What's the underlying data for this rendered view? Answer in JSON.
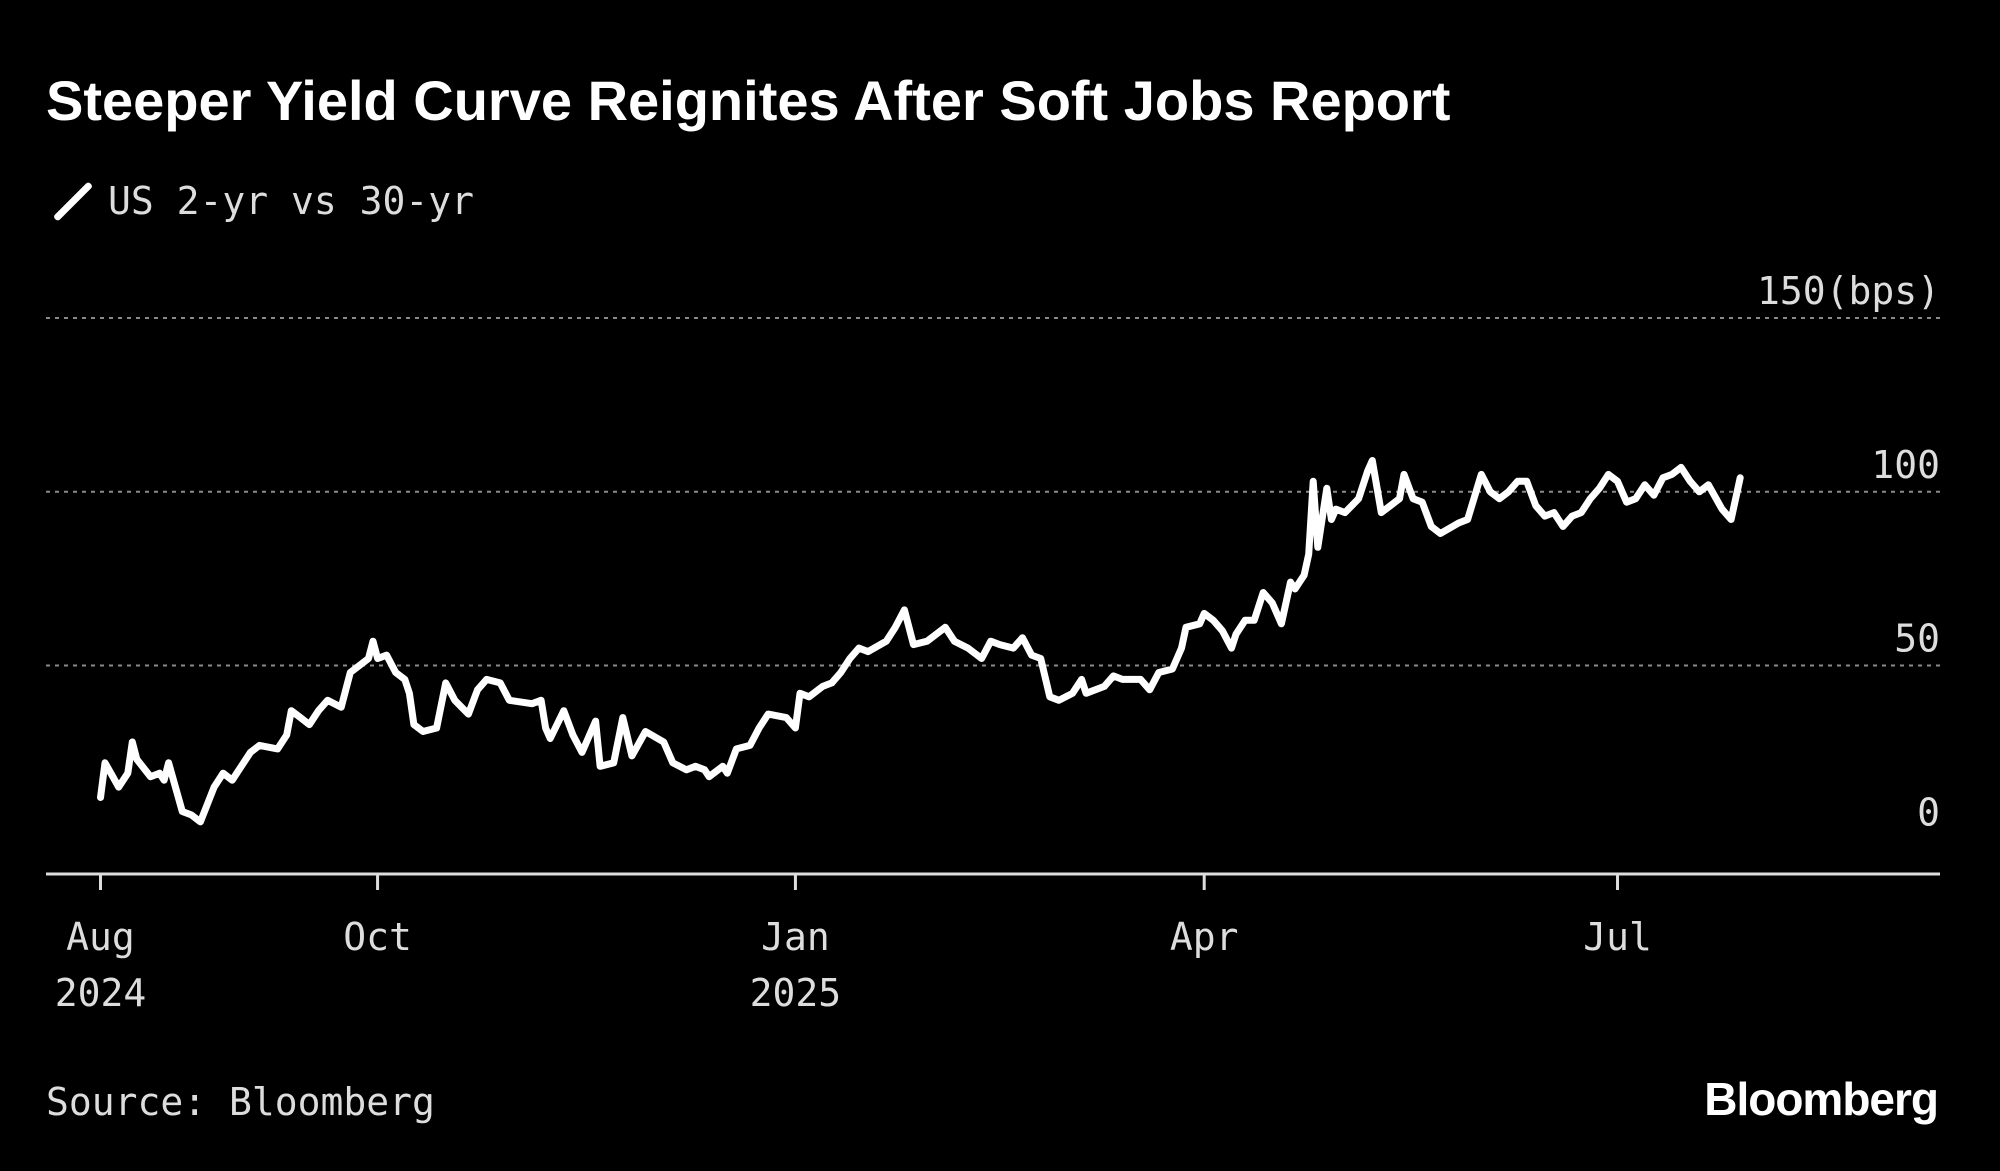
{
  "title": "Steeper Yield Curve Reignites After Soft Jobs Report",
  "source": "Source: Bloomberg",
  "brand": "Bloomberg",
  "colors": {
    "background": "#000000",
    "line": "#ffffff",
    "grid": "#8a8a8a",
    "text": "#dddddd"
  },
  "chart_data": {
    "type": "line",
    "unit_label": "(bps)",
    "ylim": [
      -10,
      150
    ],
    "y_ticks": [
      0,
      50,
      100,
      150
    ],
    "grid": "horizontal dotted",
    "legend_position": "top-left",
    "x_ticks": [
      {
        "date": "2024-08-01",
        "label": "Aug",
        "sublabel": "2024"
      },
      {
        "date": "2024-10-01",
        "label": "Oct",
        "sublabel": ""
      },
      {
        "date": "2025-01-01",
        "label": "Jan",
        "sublabel": "2025"
      },
      {
        "date": "2025-04-01",
        "label": "Apr",
        "sublabel": ""
      },
      {
        "date": "2025-07-01",
        "label": "Jul",
        "sublabel": ""
      }
    ],
    "xlim": [
      "2024-07-20",
      "2025-09-10"
    ],
    "series": [
      {
        "name": "US 2-yr vs 30-yr",
        "points": [
          [
            "2024-08-01",
            12
          ],
          [
            "2024-08-02",
            22
          ],
          [
            "2024-08-05",
            15
          ],
          [
            "2024-08-07",
            19
          ],
          [
            "2024-08-08",
            28
          ],
          [
            "2024-08-09",
            23
          ],
          [
            "2024-08-12",
            18
          ],
          [
            "2024-08-14",
            19
          ],
          [
            "2024-08-15",
            17
          ],
          [
            "2024-08-16",
            22
          ],
          [
            "2024-08-19",
            8
          ],
          [
            "2024-08-21",
            7
          ],
          [
            "2024-08-23",
            5
          ],
          [
            "2024-08-26",
            15
          ],
          [
            "2024-08-28",
            19
          ],
          [
            "2024-08-30",
            17
          ],
          [
            "2024-09-03",
            25
          ],
          [
            "2024-09-05",
            27
          ],
          [
            "2024-09-09",
            26
          ],
          [
            "2024-09-11",
            30
          ],
          [
            "2024-09-12",
            37
          ],
          [
            "2024-09-14",
            35
          ],
          [
            "2024-09-16",
            33
          ],
          [
            "2024-09-18",
            37
          ],
          [
            "2024-09-20",
            40
          ],
          [
            "2024-09-23",
            38
          ],
          [
            "2024-09-25",
            48
          ],
          [
            "2024-09-27",
            50
          ],
          [
            "2024-09-29",
            52
          ],
          [
            "2024-09-30",
            57
          ],
          [
            "2024-10-01",
            52
          ],
          [
            "2024-10-03",
            53
          ],
          [
            "2024-10-05",
            48
          ],
          [
            "2024-10-07",
            46
          ],
          [
            "2024-10-08",
            42
          ],
          [
            "2024-10-09",
            33
          ],
          [
            "2024-10-11",
            31
          ],
          [
            "2024-10-14",
            32
          ],
          [
            "2024-10-16",
            45
          ],
          [
            "2024-10-18",
            40
          ],
          [
            "2024-10-21",
            36
          ],
          [
            "2024-10-23",
            43
          ],
          [
            "2024-10-25",
            46
          ],
          [
            "2024-10-28",
            45
          ],
          [
            "2024-10-30",
            40
          ],
          [
            "2024-11-04",
            39
          ],
          [
            "2024-11-06",
            40
          ],
          [
            "2024-11-07",
            32
          ],
          [
            "2024-11-08",
            29
          ],
          [
            "2024-11-11",
            37
          ],
          [
            "2024-11-13",
            30
          ],
          [
            "2024-11-15",
            25
          ],
          [
            "2024-11-18",
            34
          ],
          [
            "2024-11-19",
            21
          ],
          [
            "2024-11-22",
            22
          ],
          [
            "2024-11-24",
            35
          ],
          [
            "2024-11-26",
            24
          ],
          [
            "2024-11-29",
            31
          ],
          [
            "2024-12-03",
            28
          ],
          [
            "2024-12-05",
            22
          ],
          [
            "2024-12-08",
            20
          ],
          [
            "2024-12-10",
            21
          ],
          [
            "2024-12-12",
            20
          ],
          [
            "2024-12-13",
            18
          ],
          [
            "2024-12-16",
            21
          ],
          [
            "2024-12-17",
            19
          ],
          [
            "2024-12-19",
            26
          ],
          [
            "2024-12-22",
            27
          ],
          [
            "2024-12-24",
            32
          ],
          [
            "2024-12-26",
            36
          ],
          [
            "2024-12-30",
            35
          ],
          [
            "2025-01-01",
            32
          ],
          [
            "2025-01-02",
            42
          ],
          [
            "2025-01-04",
            41
          ],
          [
            "2025-01-07",
            44
          ],
          [
            "2025-01-09",
            45
          ],
          [
            "2025-01-11",
            48
          ],
          [
            "2025-01-13",
            52
          ],
          [
            "2025-01-15",
            55
          ],
          [
            "2025-01-17",
            54
          ],
          [
            "2025-01-21",
            57
          ],
          [
            "2025-01-23",
            61
          ],
          [
            "2025-01-25",
            66
          ],
          [
            "2025-01-27",
            56
          ],
          [
            "2025-01-30",
            57
          ],
          [
            "2025-02-03",
            61
          ],
          [
            "2025-02-05",
            57
          ],
          [
            "2025-02-08",
            55
          ],
          [
            "2025-02-11",
            52
          ],
          [
            "2025-02-13",
            57
          ],
          [
            "2025-02-15",
            56
          ],
          [
            "2025-02-18",
            55
          ],
          [
            "2025-02-20",
            58
          ],
          [
            "2025-02-22",
            53
          ],
          [
            "2025-02-24",
            52
          ],
          [
            "2025-02-26",
            41
          ],
          [
            "2025-02-28",
            40
          ],
          [
            "2025-03-03",
            42
          ],
          [
            "2025-03-05",
            46
          ],
          [
            "2025-03-06",
            42
          ],
          [
            "2025-03-10",
            44
          ],
          [
            "2025-03-12",
            47
          ],
          [
            "2025-03-14",
            46
          ],
          [
            "2025-03-17",
            46
          ],
          [
            "2025-03-18",
            46
          ],
          [
            "2025-03-20",
            43
          ],
          [
            "2025-03-22",
            48
          ],
          [
            "2025-03-25",
            49
          ],
          [
            "2025-03-27",
            55
          ],
          [
            "2025-03-28",
            61
          ],
          [
            "2025-03-31",
            62
          ],
          [
            "2025-04-01",
            65
          ],
          [
            "2025-04-03",
            63
          ],
          [
            "2025-04-05",
            60
          ],
          [
            "2025-04-07",
            55
          ],
          [
            "2025-04-08",
            59
          ],
          [
            "2025-04-10",
            63
          ],
          [
            "2025-04-12",
            63
          ],
          [
            "2025-04-14",
            71
          ],
          [
            "2025-04-16",
            68
          ],
          [
            "2025-04-18",
            62
          ],
          [
            "2025-04-20",
            74
          ],
          [
            "2025-04-21",
            72
          ],
          [
            "2025-04-23",
            76
          ],
          [
            "2025-04-24",
            82
          ],
          [
            "2025-04-25",
            103
          ],
          [
            "2025-04-26",
            84
          ],
          [
            "2025-04-28",
            101
          ],
          [
            "2025-04-29",
            92
          ],
          [
            "2025-04-30",
            95
          ],
          [
            "2025-05-02",
            94
          ],
          [
            "2025-05-05",
            98
          ],
          [
            "2025-05-07",
            106
          ],
          [
            "2025-05-08",
            109
          ],
          [
            "2025-05-10",
            94
          ],
          [
            "2025-05-12",
            96
          ],
          [
            "2025-05-14",
            98
          ],
          [
            "2025-05-15",
            105
          ],
          [
            "2025-05-17",
            98
          ],
          [
            "2025-05-19",
            97
          ],
          [
            "2025-05-21",
            90
          ],
          [
            "2025-05-23",
            88
          ],
          [
            "2025-05-27",
            91
          ],
          [
            "2025-05-29",
            92
          ],
          [
            "2025-06-01",
            105
          ],
          [
            "2025-06-03",
            100
          ],
          [
            "2025-06-05",
            98
          ],
          [
            "2025-06-07",
            100
          ],
          [
            "2025-06-09",
            103
          ],
          [
            "2025-06-11",
            103
          ],
          [
            "2025-06-13",
            96
          ],
          [
            "2025-06-15",
            93
          ],
          [
            "2025-06-17",
            94
          ],
          [
            "2025-06-19",
            90
          ],
          [
            "2025-06-21",
            93
          ],
          [
            "2025-06-23",
            94
          ],
          [
            "2025-06-25",
            98
          ],
          [
            "2025-06-27",
            101
          ],
          [
            "2025-06-29",
            105
          ],
          [
            "2025-07-01",
            103
          ],
          [
            "2025-07-03",
            97
          ],
          [
            "2025-07-05",
            98
          ],
          [
            "2025-07-07",
            102
          ],
          [
            "2025-07-09",
            99
          ],
          [
            "2025-07-11",
            104
          ],
          [
            "2025-07-13",
            105
          ],
          [
            "2025-07-15",
            107
          ],
          [
            "2025-07-17",
            103
          ],
          [
            "2025-07-19",
            100
          ],
          [
            "2025-07-21",
            102
          ],
          [
            "2025-07-24",
            95
          ],
          [
            "2025-07-26",
            92
          ],
          [
            "2025-07-28",
            104
          ]
        ]
      }
    ]
  }
}
